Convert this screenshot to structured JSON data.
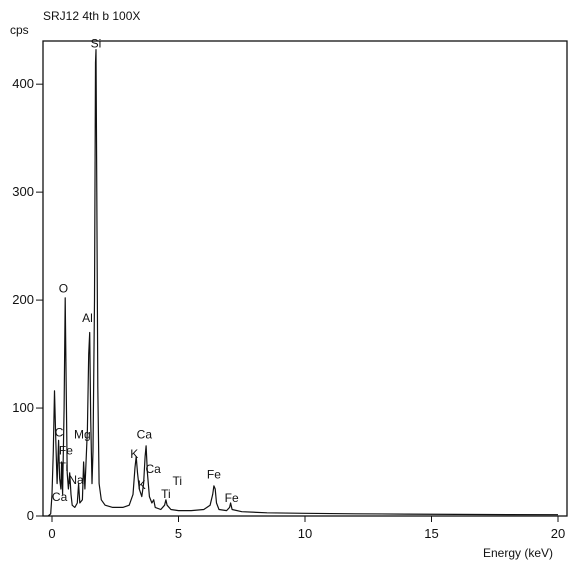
{
  "chart_data": {
    "type": "line",
    "title": "SRJ12 4th b 100X",
    "ylabel": "cps",
    "xlabel": "Energy (keV)",
    "xlim": [
      0,
      20
    ],
    "ylim": [
      0,
      440
    ],
    "x_ticks": [
      0,
      5,
      10,
      15,
      20
    ],
    "y_ticks": [
      0,
      100,
      200,
      300,
      400
    ],
    "x_tick_labels": [
      "0",
      "5",
      "10",
      "15",
      "20"
    ],
    "y_tick_labels": [
      "0",
      "100",
      "200",
      "300",
      "400"
    ],
    "grid": false,
    "series": [
      {
        "points": [
          [
            -0.15,
            0
          ],
          [
            -0.05,
            2
          ],
          [
            0.0,
            20
          ],
          [
            0.05,
            60
          ],
          [
            0.1,
            116
          ],
          [
            0.15,
            70
          ],
          [
            0.2,
            30
          ],
          [
            0.26,
            70
          ],
          [
            0.3,
            35
          ],
          [
            0.35,
            25
          ],
          [
            0.38,
            50
          ],
          [
            0.42,
            20
          ],
          [
            0.48,
            100
          ],
          [
            0.52,
            202
          ],
          [
            0.56,
            120
          ],
          [
            0.6,
            40
          ],
          [
            0.65,
            25
          ],
          [
            0.7,
            40
          ],
          [
            0.75,
            20
          ],
          [
            0.8,
            10
          ],
          [
            0.9,
            8
          ],
          [
            1.0,
            12
          ],
          [
            1.05,
            30
          ],
          [
            1.1,
            12
          ],
          [
            1.2,
            15
          ],
          [
            1.25,
            50
          ],
          [
            1.3,
            25
          ],
          [
            1.4,
            80
          ],
          [
            1.45,
            150
          ],
          [
            1.49,
            170
          ],
          [
            1.53,
            90
          ],
          [
            1.58,
            30
          ],
          [
            1.62,
            60
          ],
          [
            1.68,
            200
          ],
          [
            1.72,
            420
          ],
          [
            1.74,
            432
          ],
          [
            1.77,
            300
          ],
          [
            1.81,
            120
          ],
          [
            1.86,
            30
          ],
          [
            1.95,
            15
          ],
          [
            2.1,
            10
          ],
          [
            2.4,
            8
          ],
          [
            2.8,
            8
          ],
          [
            3.05,
            10
          ],
          [
            3.2,
            20
          ],
          [
            3.28,
            45
          ],
          [
            3.33,
            55
          ],
          [
            3.38,
            40
          ],
          [
            3.45,
            25
          ],
          [
            3.55,
            18
          ],
          [
            3.62,
            30
          ],
          [
            3.68,
            55
          ],
          [
            3.72,
            65
          ],
          [
            3.77,
            40
          ],
          [
            3.85,
            18
          ],
          [
            3.95,
            12
          ],
          [
            4.02,
            15
          ],
          [
            4.08,
            8
          ],
          [
            4.3,
            6
          ],
          [
            4.45,
            10
          ],
          [
            4.5,
            15
          ],
          [
            4.55,
            10
          ],
          [
            4.7,
            6
          ],
          [
            5.0,
            5
          ],
          [
            5.5,
            5
          ],
          [
            6.0,
            6
          ],
          [
            6.25,
            10
          ],
          [
            6.35,
            20
          ],
          [
            6.4,
            28
          ],
          [
            6.45,
            25
          ],
          [
            6.5,
            12
          ],
          [
            6.6,
            6
          ],
          [
            6.9,
            5
          ],
          [
            7.02,
            8
          ],
          [
            7.06,
            12
          ],
          [
            7.12,
            6
          ],
          [
            7.5,
            4
          ],
          [
            8.5,
            3
          ],
          [
            10,
            2.5
          ],
          [
            12,
            2
          ],
          [
            14,
            1.8
          ],
          [
            16,
            1.5
          ],
          [
            18,
            1.3
          ],
          [
            20,
            1.2
          ]
        ]
      }
    ],
    "peak_labels": [
      {
        "text": "Si",
        "x": 1.74,
        "y": 432
      },
      {
        "text": "O",
        "x": 0.45,
        "y": 205
      },
      {
        "text": "Al",
        "x": 1.4,
        "y": 178
      },
      {
        "text": "C",
        "x": 0.28,
        "y": 72
      },
      {
        "text": "Mg",
        "x": 1.2,
        "y": 70
      },
      {
        "text": "Fe",
        "x": 0.55,
        "y": 55
      },
      {
        "text": "Ti",
        "x": 0.45,
        "y": 40
      },
      {
        "text": "Na",
        "x": 0.95,
        "y": 28
      },
      {
        "text": "Ca",
        "x": 0.3,
        "y": 12
      },
      {
        "text": "Ca",
        "x": 3.65,
        "y": 70
      },
      {
        "text": "K",
        "x": 3.25,
        "y": 52
      },
      {
        "text": "Ca",
        "x": 4.0,
        "y": 38
      },
      {
        "text": "Ti",
        "x": 4.95,
        "y": 27
      },
      {
        "text": "K",
        "x": 3.55,
        "y": 23
      },
      {
        "text": "Ti",
        "x": 4.5,
        "y": 15
      },
      {
        "text": "Fe",
        "x": 6.4,
        "y": 33
      },
      {
        "text": "Fe",
        "x": 7.1,
        "y": 11
      }
    ]
  },
  "colors": {
    "line": "#111111",
    "axis": "#111111",
    "background": "#ffffff"
  }
}
